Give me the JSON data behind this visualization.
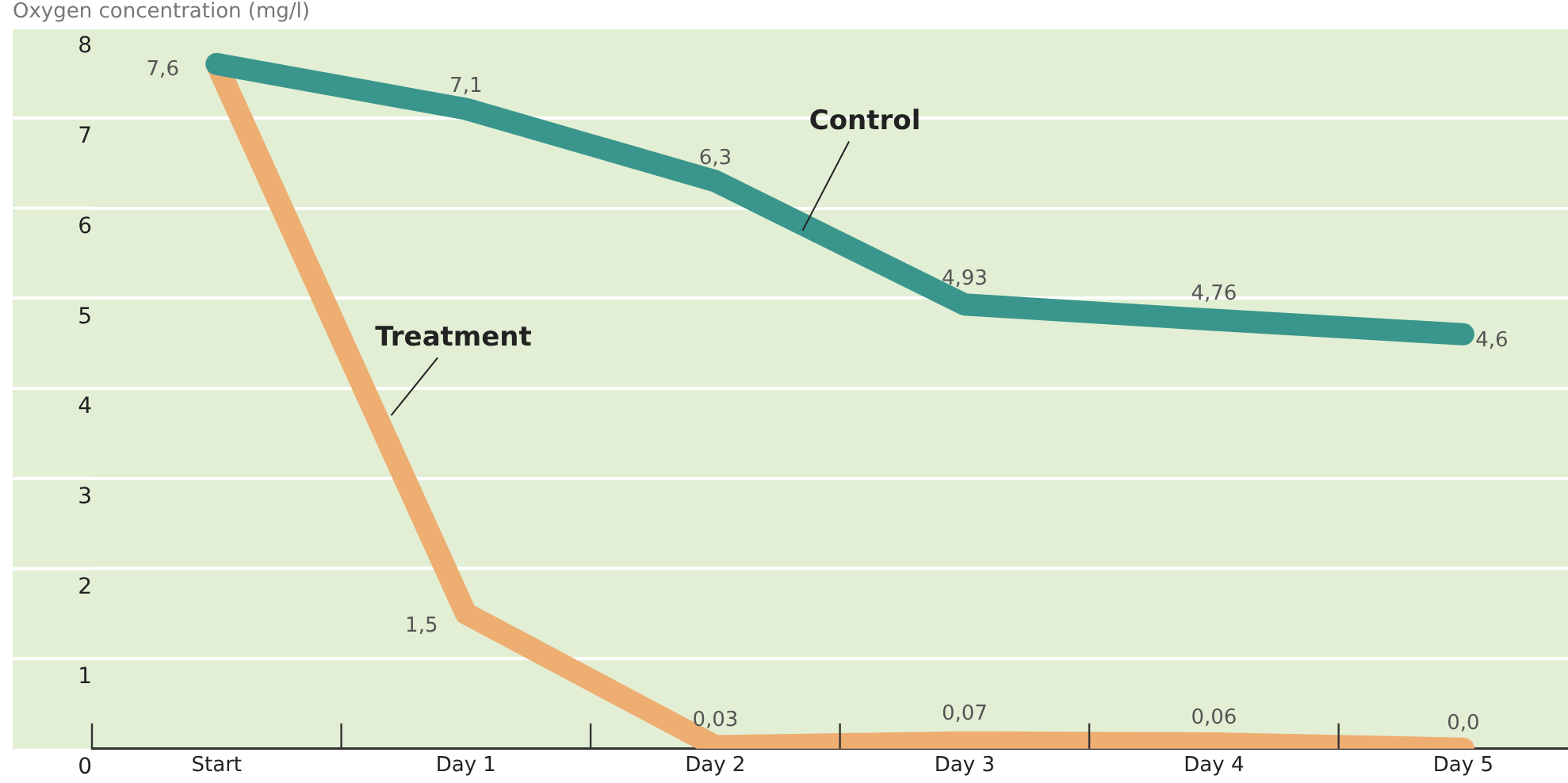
{
  "chart_data": {
    "type": "line",
    "title": "Oxygen concentration (mg/l)",
    "categories": [
      "Start",
      "Day 1",
      "Day 2",
      "Day 3",
      "Day 4",
      "Day 5"
    ],
    "series": [
      {
        "name": "Control",
        "color": "#3a968c",
        "values": [
          7.6,
          7.1,
          6.3,
          4.93,
          4.76,
          4.6
        ],
        "value_labels": [
          "7,6",
          "7,1",
          "6,3",
          "4,93",
          "4,76",
          "4,6"
        ]
      },
      {
        "name": "Treatment",
        "color": "#eeae72",
        "values": [
          7.6,
          1.5,
          0.03,
          0.07,
          0.06,
          0.0
        ],
        "value_labels": [
          null,
          "1,5",
          "0,03",
          "0,07",
          "0,06",
          "0,0"
        ]
      }
    ],
    "ylim": [
      0,
      8
    ],
    "yticks": [
      0,
      1,
      2,
      3,
      4,
      5,
      6,
      7,
      8
    ],
    "grid": "y",
    "legend": false,
    "marker": "none",
    "line_style": "solid"
  }
}
